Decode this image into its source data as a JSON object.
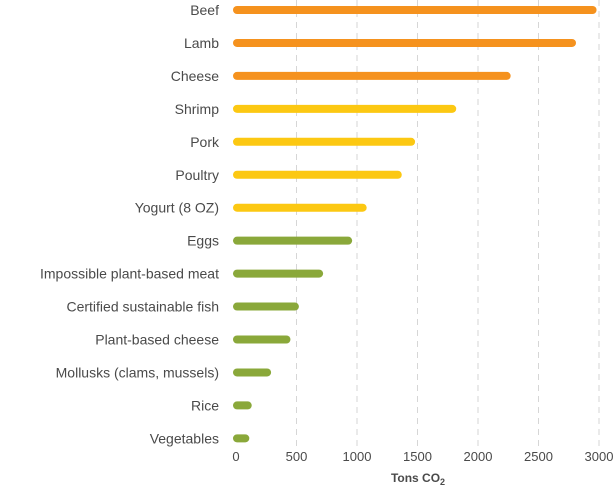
{
  "chart_data": {
    "type": "bar",
    "orientation": "horizontal",
    "categories": [
      "Beef",
      "Lamb",
      "Cheese",
      "Shrimp",
      "Pork",
      "Poultry",
      "Yogurt (8 OZ)",
      "Eggs",
      "Impossible plant-based meat",
      "Certified sustainable fish",
      "Plant-based cheese",
      "Mollusks (clams, mussels)",
      "Rice",
      "Vegetables"
    ],
    "values": [
      2980,
      2810,
      2270,
      1820,
      1480,
      1370,
      1080,
      960,
      720,
      520,
      450,
      290,
      130,
      110
    ],
    "colors": [
      "#f5921e",
      "#f5921e",
      "#f5921e",
      "#fcc812",
      "#fcc812",
      "#fcc812",
      "#fcc812",
      "#8aa83a",
      "#8aa83a",
      "#8aa83a",
      "#8aa83a",
      "#8aa83a",
      "#8aa83a",
      "#8aa83a"
    ],
    "xlabel": "Tons CO",
    "xlabel_sub": "2",
    "xlim": [
      0,
      3000
    ],
    "xticks": [
      0,
      500,
      1000,
      1500,
      2000,
      2500,
      3000
    ],
    "grid": "vertical dashed"
  }
}
